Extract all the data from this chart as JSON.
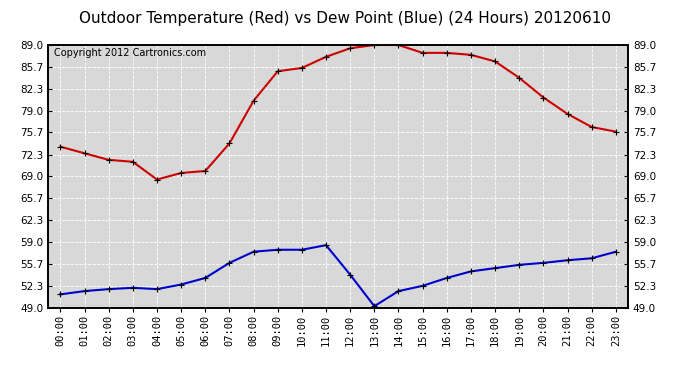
{
  "title": "Outdoor Temperature (Red) vs Dew Point (Blue) (24 Hours) 20120610",
  "copyright": "Copyright 2012 Cartronics.com",
  "hours": [
    "00:00",
    "01:00",
    "02:00",
    "03:00",
    "04:00",
    "05:00",
    "06:00",
    "07:00",
    "08:00",
    "09:00",
    "10:00",
    "11:00",
    "12:00",
    "13:00",
    "14:00",
    "15:00",
    "16:00",
    "17:00",
    "18:00",
    "19:00",
    "20:00",
    "21:00",
    "22:00",
    "23:00"
  ],
  "temp": [
    73.5,
    72.5,
    71.5,
    71.2,
    68.5,
    69.5,
    69.8,
    74.0,
    80.5,
    85.0,
    85.5,
    87.2,
    88.5,
    89.0,
    89.0,
    87.8,
    87.8,
    87.5,
    86.5,
    84.0,
    81.0,
    78.5,
    76.5,
    75.8
  ],
  "dew": [
    51.0,
    51.5,
    51.8,
    52.0,
    51.8,
    52.5,
    53.5,
    55.8,
    57.5,
    57.8,
    57.8,
    58.5,
    54.0,
    49.2,
    51.5,
    52.3,
    53.5,
    54.5,
    55.0,
    55.5,
    55.8,
    56.2,
    56.5,
    57.5
  ],
  "temp_color": "#cc0000",
  "dew_color": "#0000cc",
  "bg_color": "#ffffff",
  "plot_bg": "#d8d8d8",
  "grid_color": "#ffffff",
  "ymin": 49.0,
  "ymax": 89.0,
  "yticks": [
    49.0,
    52.3,
    55.7,
    59.0,
    62.3,
    65.7,
    69.0,
    72.3,
    75.7,
    79.0,
    82.3,
    85.7,
    89.0
  ],
  "title_fontsize": 11,
  "copyright_fontsize": 7,
  "tick_fontsize": 7.5,
  "marker": "+",
  "marker_size": 5,
  "line_width": 1.5
}
